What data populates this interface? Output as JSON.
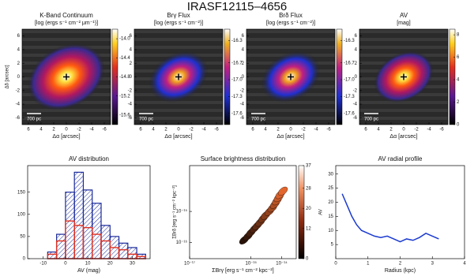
{
  "title": "IRASF12115–4656",
  "chart_data": [
    {
      "type": "image",
      "title": "K-Band Continuum",
      "subtitle": "[log (ergs s⁻¹ cm⁻² μm⁻¹)]",
      "xlabel": "Δα [arcsec]",
      "ylabel": "Δδ [arcsec]",
      "xlim": [
        7,
        -7
      ],
      "xticks": [
        6,
        4,
        2,
        0,
        -2,
        -4,
        -6
      ],
      "ylim": [
        -7,
        7
      ],
      "yticks": [
        -6,
        -4,
        -2,
        0,
        2,
        4,
        6
      ],
      "clim": [
        -15.8,
        -13.8
      ],
      "cticks": [
        {
          "value": -14,
          "label": "-14.0"
        },
        -14.4,
        -14.8,
        -15.2,
        -15.6
      ],
      "scale_bar": "700 pc",
      "cmap": "heat"
    },
    {
      "type": "image",
      "title": "Brγ Flux",
      "subtitle": "[log (ergs s⁻¹ cm⁻²)]",
      "xlabel": "Δα [arcsec]",
      "xlim": [
        7,
        -7
      ],
      "xticks": [
        6,
        4,
        2,
        0,
        -2,
        -4,
        -6
      ],
      "ylim": [
        -7,
        7
      ],
      "yticks": [
        -6,
        -4,
        -2,
        0,
        2,
        4,
        6
      ],
      "clim": [
        -17.8,
        -16.1
      ],
      "cticks": [
        -16.3,
        -16.7,
        {
          "value": -17,
          "label": "-17.0"
        },
        -17.3,
        -17.6
      ],
      "scale_bar": "700 pc",
      "cmap": "rainbow"
    },
    {
      "type": "image",
      "title": "Brδ Flux",
      "subtitle": "[log (ergs s⁻¹ cm⁻²)]",
      "xlabel": "Δα [arcsec]",
      "xlim": [
        7,
        -7
      ],
      "xticks": [
        6,
        4,
        2,
        0,
        -2,
        -4,
        -6
      ],
      "ylim": [
        -7,
        7
      ],
      "yticks": [
        -6,
        -4,
        -2,
        0,
        2,
        4,
        6
      ],
      "clim": [
        -17.8,
        -16.1
      ],
      "cticks": [
        -16.3,
        -16.7,
        {
          "value": -17,
          "label": "-17.0"
        },
        -17.3,
        -17.6
      ],
      "scale_bar": "700 pc",
      "cmap": "rainbow"
    },
    {
      "type": "image",
      "title": "AV",
      "subtitle": "[mag]",
      "xlabel": "Δα [arcsec]",
      "xlim": [
        7,
        -7
      ],
      "xticks": [
        6,
        4,
        2,
        0,
        -2,
        -4,
        -6
      ],
      "ylim": [
        -7,
        7
      ],
      "yticks": [
        -6,
        -4,
        -2,
        0,
        2,
        4,
        6
      ],
      "clim": [
        0,
        8.5
      ],
      "cticks": [
        8,
        6,
        4,
        2,
        0
      ],
      "scale_bar": "700 pc",
      "cmap": "heat"
    },
    {
      "type": "histogram",
      "title": "AV distribution",
      "xlabel": "AV (mag)",
      "xlim": [
        -17,
        38
      ],
      "xticks": [
        -10,
        0,
        10,
        20,
        30
      ],
      "ylim": [
        0,
        210
      ],
      "yticks": [
        0,
        50,
        100,
        150
      ],
      "bins": [
        -8,
        -4,
        0,
        4,
        8,
        12,
        16,
        20,
        24,
        28,
        32,
        36
      ],
      "series": [
        {
          "color": "#1a2a9a",
          "values": [
            15,
            55,
            150,
            195,
            155,
            125,
            75,
            50,
            35,
            25,
            10
          ]
        },
        {
          "color": "#e03020",
          "values": [
            10,
            40,
            85,
            75,
            70,
            55,
            40,
            25,
            20,
            10,
            5
          ]
        }
      ]
    },
    {
      "type": "scatter",
      "title": "Surface brightness distribution",
      "xlabel": "ΣBrγ [erg s⁻¹ cm⁻² kpc⁻²]",
      "ylabel": "ΣBrδ [erg s⁻¹ cm⁻² kpc⁻²]",
      "xlog": true,
      "ylog": true,
      "xlim": [
        1e-17,
        3e-14
      ],
      "xticks": [
        {
          "value": 1e-17,
          "label": "10⁻¹⁷"
        },
        {
          "value": 1e-15,
          "label": "10⁻¹⁵"
        },
        {
          "value": 1e-14,
          "label": "10⁻¹⁴"
        }
      ],
      "ylim": [
        3e-17,
        3e-14
      ],
      "yticks": [
        {
          "value": 1e-16,
          "label": "10⁻¹⁶"
        },
        {
          "value": 1e-15,
          "label": "10⁻¹⁵"
        }
      ],
      "x": [
        6e-16,
        8e-16,
        1e-15,
        1.3e-15,
        1.6e-15,
        2e-15,
        2.5e-15,
        3e-15,
        4e-15,
        5e-15,
        6e-15,
        7e-15,
        8e-15,
        9e-15,
        1.1e-14
      ],
      "y": [
        1.2e-16,
        1.6e-16,
        2.1e-16,
        2.8e-16,
        3.5e-16,
        4.5e-16,
        6e-16,
        7.5e-16,
        1e-15,
        1.3e-15,
        1.7e-15,
        2.2e-15,
        2.8e-15,
        3.5e-15,
        4.5e-15
      ],
      "clim": [
        0,
        37
      ],
      "cticks": [
        37,
        28,
        20,
        12,
        0
      ]
    },
    {
      "type": "line",
      "title": "AV radial profile",
      "xlabel": "Radius (kpc)",
      "ylabel": "AV",
      "xlim": [
        0,
        4
      ],
      "xticks": [
        0,
        1,
        2,
        3,
        4
      ],
      "ylim": [
        0,
        33
      ],
      "yticks": [
        5,
        10,
        15,
        20,
        25,
        30
      ],
      "x": [
        0.2,
        0.35,
        0.5,
        0.65,
        0.8,
        1.0,
        1.2,
        1.4,
        1.6,
        1.8,
        2.0,
        2.2,
        2.4,
        2.6,
        2.8,
        3.0,
        3.2
      ],
      "series": [
        {
          "color": "#1a3ad0",
          "values": [
            23,
            19,
            15,
            12,
            10,
            9,
            8,
            7.5,
            8,
            7,
            6,
            7,
            6.5,
            7.5,
            9,
            8,
            7
          ]
        }
      ]
    }
  ]
}
